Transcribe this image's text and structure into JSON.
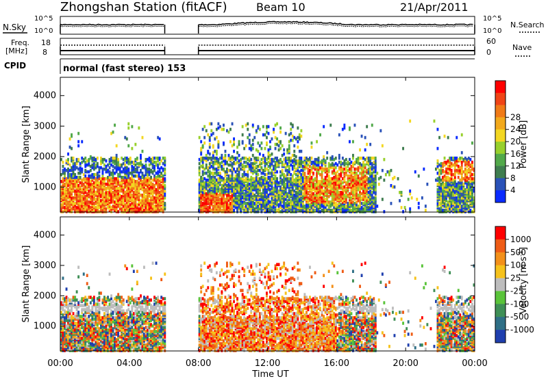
{
  "header": {
    "title": "Zhongshan Station (fitACF)",
    "beam": "Beam 10",
    "date": "21/Apr/2011",
    "mode": "normal (fast stereo) 153"
  },
  "left_labels": {
    "nsky": "N.Sky",
    "freq_line1": "Freq.",
    "freq_line2": "[MHz]",
    "cpid": "CPID"
  },
  "right_labels": {
    "nsearch": "N.Search",
    "nave": "Nave"
  },
  "small_axes": {
    "noise_left_ticks": [
      "10^5",
      "10^0"
    ],
    "noise_right_ticks": [
      "10^5",
      "10^0"
    ],
    "freq_left_ticks": [
      "18",
      "8"
    ],
    "nave_right_ticks": [
      "60",
      "0"
    ]
  },
  "chart_data": [
    {
      "type": "heatmap",
      "title": "Power",
      "ylabel": "Slant Range [km]",
      "xlabel": "Time UT",
      "ylim": [
        180,
        4600
      ],
      "xlim": [
        0,
        24
      ],
      "x_ticks": [
        "00:00",
        "04:00",
        "08:00",
        "12:00",
        "16:00",
        "20:00",
        "00:00"
      ],
      "y_ticks": [
        1000,
        2000,
        3000,
        4000
      ],
      "colorbar": {
        "label": "Power [dB]",
        "ticks": [
          "4",
          "8",
          "12",
          "16",
          "20",
          "24",
          "28"
        ],
        "colors": [
          "#0a2bff",
          "#2a52b8",
          "#3f7d4f",
          "#52a94a",
          "#98d02c",
          "#f3d722",
          "#f2a91c",
          "#f07a17",
          "#f04416",
          "#ff0000"
        ]
      },
      "data_gaps_hours": [
        [
          6.05,
          8.0
        ]
      ],
      "scatter_bands": [
        {
          "t_start": 0.0,
          "t_end": 6.0,
          "range_km": [
            300,
            1300
          ],
          "dominant": "red"
        },
        {
          "t_start": 0.0,
          "t_end": 6.0,
          "range_km": [
            1500,
            1700
          ],
          "dominant": "blue"
        },
        {
          "t_start": 8.0,
          "t_end": 9.5,
          "range_km": [
            300,
            800
          ],
          "dominant": "red"
        },
        {
          "t_start": 14.5,
          "t_end": 17.7,
          "range_km": [
            600,
            1600
          ],
          "dominant": "red"
        },
        {
          "t_start": 22.0,
          "t_end": 24.0,
          "range_km": [
            1200,
            1900
          ],
          "dominant": "red"
        }
      ]
    },
    {
      "type": "heatmap",
      "title": "Velocity",
      "ylabel": "Slant Range [km]",
      "xlabel": "Time UT",
      "ylim": [
        180,
        4600
      ],
      "xlim": [
        0,
        24
      ],
      "x_ticks": [
        "00:00",
        "04:00",
        "08:00",
        "12:00",
        "16:00",
        "20:00",
        "00:00"
      ],
      "y_ticks": [
        1000,
        2000,
        3000,
        4000
      ],
      "colorbar": {
        "label": "Velocity [m s^-1]",
        "ticks": [
          "1000",
          "500",
          "100",
          "25",
          "-25",
          "-100",
          "-500",
          "-1000"
        ],
        "colors": [
          "#1f3fae",
          "#2f6f86",
          "#3f8f56",
          "#5ac43a",
          "#bdbdbd",
          "#f6c21c",
          "#f3901a",
          "#ef5c16",
          "#ff0000"
        ]
      },
      "data_gaps_hours": [
        [
          6.05,
          8.0
        ]
      ]
    }
  ]
}
